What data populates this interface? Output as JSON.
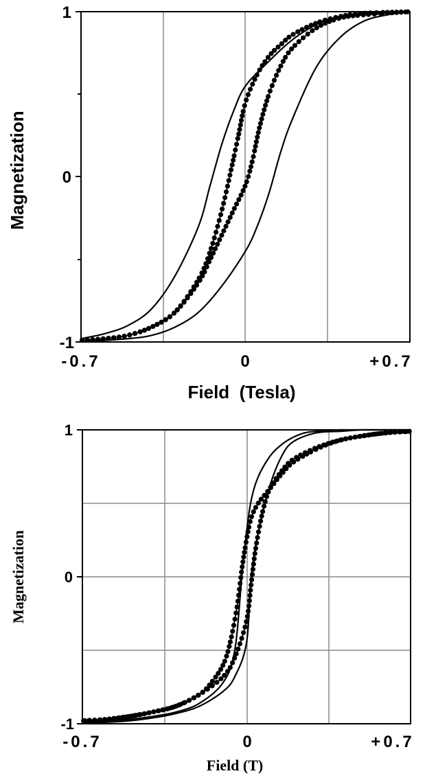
{
  "chart_data": [
    {
      "type": "line",
      "title": "",
      "xlabel": "Field  (Tesla)",
      "ylabel": "Magnetization",
      "xlim": [
        -0.7,
        0.7
      ],
      "ylim": [
        -1,
        1
      ],
      "x_tick_labels": [
        "-0.7",
        "0",
        "+0.7"
      ],
      "y_tick_labels": [
        "-1",
        "0",
        "1"
      ],
      "grid": "vertical lines at -0.35, 0, 0.35",
      "series": [
        {
          "style": "solid line",
          "branch": "descending",
          "x": [
            0.7,
            0.5,
            0.4,
            0.3,
            0.2,
            0.1,
            0.0,
            -0.05,
            -0.1,
            -0.15,
            -0.2,
            -0.3,
            -0.4,
            -0.5,
            -0.6,
            -0.7
          ],
          "y": [
            1.0,
            0.99,
            0.97,
            0.92,
            0.83,
            0.7,
            0.55,
            0.4,
            0.2,
            -0.05,
            -0.3,
            -0.6,
            -0.8,
            -0.9,
            -0.95,
            -0.98
          ]
        },
        {
          "style": "solid line",
          "branch": "ascending",
          "x": [
            -0.7,
            -0.5,
            -0.4,
            -0.3,
            -0.2,
            -0.1,
            0.0,
            0.05,
            0.1,
            0.15,
            0.2,
            0.3,
            0.4,
            0.5,
            0.6,
            0.7
          ],
          "y": [
            -1.0,
            -0.98,
            -0.96,
            -0.91,
            -0.82,
            -0.66,
            -0.45,
            -0.3,
            -0.1,
            0.15,
            0.35,
            0.66,
            0.84,
            0.94,
            0.98,
            1.0
          ]
        },
        {
          "style": "line with filled circles",
          "branch": "descending",
          "x": [
            0.7,
            0.5,
            0.4,
            0.3,
            0.2,
            0.15,
            0.1,
            0.05,
            0.0,
            -0.03,
            -0.06,
            -0.1,
            -0.15,
            -0.2,
            -0.3,
            -0.4,
            -0.5,
            -0.6,
            -0.7
          ],
          "y": [
            1.0,
            0.99,
            0.97,
            0.93,
            0.86,
            0.8,
            0.73,
            0.62,
            0.45,
            0.25,
            0.05,
            -0.2,
            -0.45,
            -0.62,
            -0.82,
            -0.91,
            -0.96,
            -0.98,
            -0.99
          ]
        },
        {
          "style": "line with filled circles",
          "branch": "ascending",
          "x": [
            -0.7,
            -0.6,
            -0.5,
            -0.4,
            -0.3,
            -0.2,
            -0.15,
            -0.1,
            -0.05,
            0.0,
            0.03,
            0.06,
            0.1,
            0.15,
            0.2,
            0.3,
            0.4,
            0.5,
            0.7
          ],
          "y": [
            -0.99,
            -0.98,
            -0.96,
            -0.91,
            -0.82,
            -0.64,
            -0.5,
            -0.35,
            -0.2,
            -0.05,
            0.1,
            0.3,
            0.5,
            0.67,
            0.78,
            0.9,
            0.96,
            0.98,
            1.0
          ]
        }
      ]
    },
    {
      "type": "line",
      "title": "",
      "xlabel": "Field (T)",
      "ylabel": "Magnetization",
      "xlim": [
        -0.7,
        0.7
      ],
      "ylim": [
        -1,
        1
      ],
      "x_tick_labels": [
        "-0.7",
        "0",
        "+0.7"
      ],
      "y_tick_labels": [
        "-1",
        "0",
        "1"
      ],
      "grid": "vertical lines at -0.35, 0, 0.35; horizontal lines at -0.5, 0, 0.5",
      "series": [
        {
          "style": "solid line",
          "branch": "descending",
          "x": [
            0.7,
            0.6,
            0.5,
            0.4,
            0.3,
            0.25,
            0.2,
            0.15,
            0.1,
            0.05,
            0.02,
            0.0,
            -0.02,
            -0.05,
            -0.1,
            -0.2,
            -0.3,
            -0.4,
            -0.5,
            -0.6,
            -0.7
          ],
          "y": [
            1.0,
            1.0,
            1.0,
            1.0,
            0.99,
            0.98,
            0.95,
            0.9,
            0.82,
            0.68,
            0.52,
            0.3,
            0.0,
            -0.5,
            -0.72,
            -0.86,
            -0.92,
            -0.95,
            -0.97,
            -0.98,
            -0.99
          ]
        },
        {
          "style": "solid line",
          "branch": "ascending",
          "x": [
            -0.7,
            -0.6,
            -0.5,
            -0.4,
            -0.3,
            -0.2,
            -0.1,
            -0.05,
            0.0,
            0.02,
            0.05,
            0.1,
            0.15,
            0.2,
            0.3,
            0.4,
            0.5,
            0.6,
            0.7
          ],
          "y": [
            -1.0,
            -0.99,
            -0.98,
            -0.96,
            -0.93,
            -0.88,
            -0.78,
            -0.68,
            -0.45,
            0.0,
            0.3,
            0.62,
            0.82,
            0.92,
            0.98,
            0.99,
            1.0,
            1.0,
            1.0
          ]
        },
        {
          "style": "line with filled circles",
          "branch": "descending",
          "x": [
            0.7,
            0.6,
            0.5,
            0.4,
            0.3,
            0.2,
            0.15,
            0.1,
            0.05,
            0.02,
            0.0,
            -0.02,
            -0.04,
            -0.07,
            -0.1,
            -0.15,
            -0.2,
            -0.3,
            -0.4,
            -0.5,
            -0.6,
            -0.7
          ],
          "y": [
            0.99,
            0.98,
            0.96,
            0.93,
            0.87,
            0.78,
            0.7,
            0.6,
            0.5,
            0.4,
            0.25,
            0.05,
            -0.2,
            -0.45,
            -0.6,
            -0.72,
            -0.8,
            -0.88,
            -0.92,
            -0.95,
            -0.97,
            -0.98
          ]
        },
        {
          "style": "line with filled circles",
          "branch": "ascending",
          "x": [
            -0.7,
            -0.6,
            -0.5,
            -0.4,
            -0.3,
            -0.2,
            -0.1,
            -0.05,
            0.0,
            0.02,
            0.04,
            0.07,
            0.1,
            0.15,
            0.2,
            0.3,
            0.4,
            0.5,
            0.6,
            0.7
          ],
          "y": [
            -0.98,
            -0.97,
            -0.95,
            -0.92,
            -0.88,
            -0.8,
            -0.68,
            -0.55,
            -0.3,
            -0.05,
            0.2,
            0.45,
            0.6,
            0.72,
            0.8,
            0.88,
            0.93,
            0.96,
            0.98,
            0.99
          ]
        }
      ]
    }
  ]
}
